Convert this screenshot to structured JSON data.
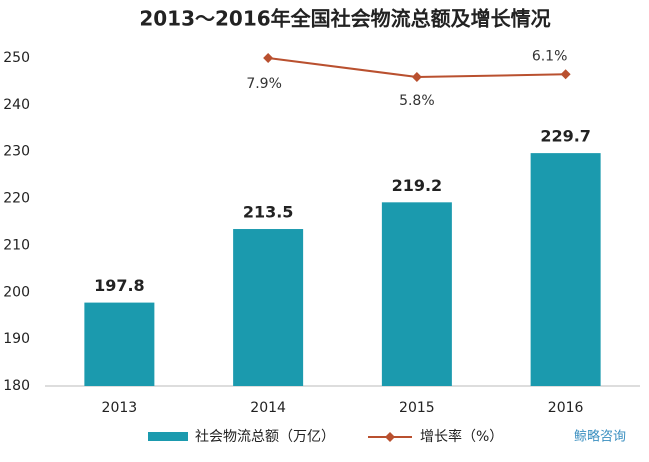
{
  "chart_data": {
    "type": "bar_line",
    "title": "2013～2016年全国社会物流总额及增长情况",
    "categories": [
      "2013",
      "2014",
      "2015",
      "2016"
    ],
    "series": [
      {
        "name": "社会物流总额（万亿）",
        "color": "#1b9aae",
        "values": [
          197.8,
          213.5,
          219.2,
          229.7
        ]
      },
      {
        "name": "增长率（%）",
        "color": "#b9502f",
        "axis": "y2",
        "values": [
          null,
          7.9,
          5.8,
          6.1
        ],
        "value_labels": [
          null,
          "7.9%",
          "5.8%",
          "6.1%"
        ]
      }
    ],
    "ylim": [
      180,
      250
    ],
    "yticks": [
      180,
      190,
      200,
      210,
      220,
      230,
      240,
      250
    ],
    "y2lim": [
      -28.3,
      7.9
    ],
    "grid": false,
    "legend": "bottom",
    "watermark": "鲸略咨询"
  }
}
